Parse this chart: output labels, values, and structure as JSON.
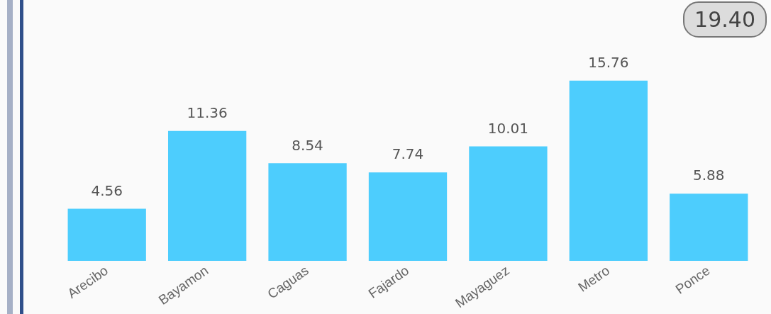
{
  "chart_data": {
    "type": "bar",
    "categories": [
      "Arecibo",
      "Bayamon",
      "Caguas",
      "Fajardo",
      "Mayaguez",
      "Metro",
      "Ponce"
    ],
    "values": [
      4.56,
      11.36,
      8.54,
      7.74,
      10.01,
      15.76,
      5.88
    ],
    "color": "#4dcdfd",
    "data_labels": true,
    "tick_labels": "x",
    "annotations": [
      "19.40"
    ]
  }
}
